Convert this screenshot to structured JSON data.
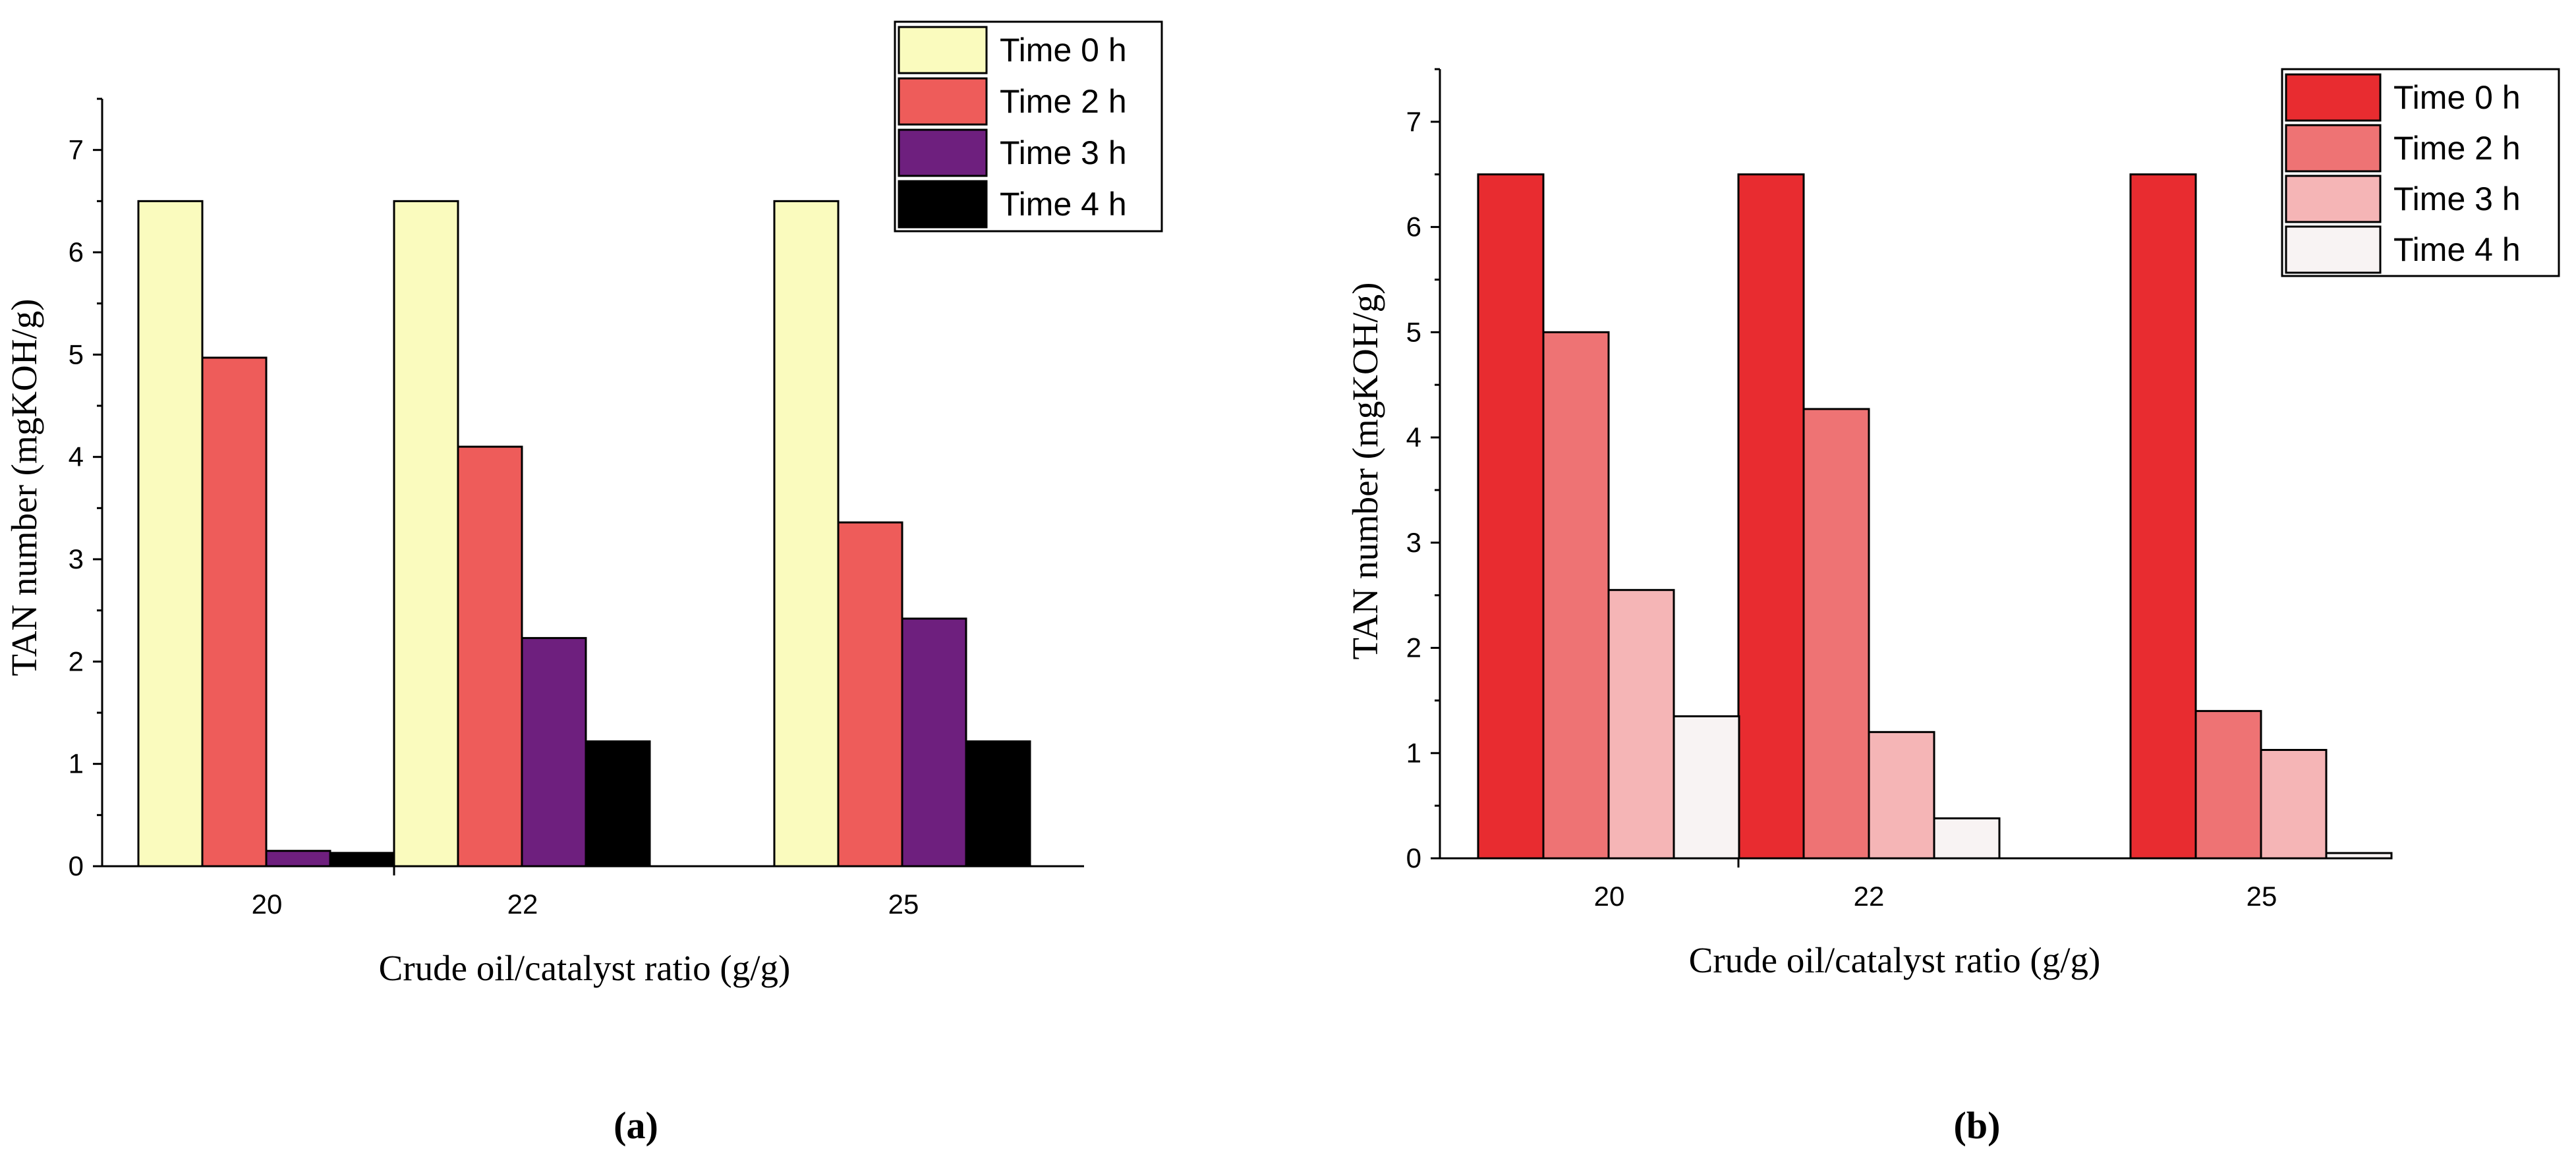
{
  "chart_data": [
    {
      "type": "bar",
      "panel_label": "(a)",
      "title": "",
      "xlabel": "Crude oil/catalyst ratio (g/g)",
      "ylabel": "TAN number (mgKOH/g)",
      "ylim": [
        0,
        7.5
      ],
      "yticks": [
        "0",
        "1",
        "2",
        "3",
        "4",
        "5",
        "6",
        "7"
      ],
      "categories": [
        "20",
        "22",
        "25"
      ],
      "legend_position": "top-right",
      "grid": false,
      "series": [
        {
          "name": "Time 0 h",
          "color": "#FAFBBE",
          "values": [
            6.5,
            6.5,
            6.5
          ]
        },
        {
          "name": "Time 2 h",
          "color": "#EE5C5A",
          "values": [
            4.97,
            4.1,
            3.36
          ]
        },
        {
          "name": "Time 3 h",
          "color": "#6E1F7E",
          "values": [
            0.15,
            2.23,
            2.42
          ]
        },
        {
          "name": "Time 4 h",
          "color": "#000000",
          "values": [
            0.13,
            1.22,
            1.22
          ]
        }
      ]
    },
    {
      "type": "bar",
      "panel_label": "(b)",
      "title": "",
      "xlabel": "Crude oil/catalyst ratio (g/g)",
      "ylabel": "TAN number (mgKOH/g)",
      "ylim": [
        0,
        7.5
      ],
      "yticks": [
        "0",
        "1",
        "2",
        "3",
        "4",
        "5",
        "6",
        "7"
      ],
      "categories": [
        "20",
        "22",
        "25"
      ],
      "legend_position": "top-right",
      "grid": false,
      "series": [
        {
          "name": "Time 0 h",
          "color": "#E82C30",
          "values": [
            6.5,
            6.5,
            6.5
          ]
        },
        {
          "name": "Time 2 h",
          "color": "#EE7374",
          "values": [
            5.0,
            4.27,
            1.4
          ]
        },
        {
          "name": "Time 3 h",
          "color": "#F5B5B6",
          "values": [
            2.55,
            1.2,
            1.03
          ]
        },
        {
          "name": "Time 4 h",
          "color": "#F8F3F3",
          "values": [
            1.35,
            0.38,
            0.05
          ]
        }
      ]
    }
  ]
}
